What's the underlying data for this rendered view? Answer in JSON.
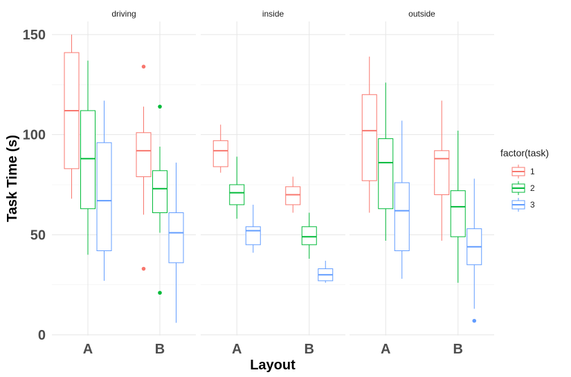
{
  "chart_data": {
    "type": "boxplot",
    "xlabel": "Layout",
    "ylabel": "Task Time (s)",
    "ylim": [
      0,
      150
    ],
    "yticks": [
      0,
      50,
      100,
      150
    ],
    "grid": true,
    "legend": {
      "title": "factor(task)",
      "position": "right",
      "entries": [
        "1",
        "2",
        "3"
      ]
    },
    "series_colors": {
      "1": "#F8766D",
      "2": "#00BA38",
      "3": "#619CFF"
    },
    "panels": [
      {
        "name": "driving",
        "categories": [
          "A",
          "B"
        ],
        "boxes": [
          {
            "category": "A",
            "task": "1",
            "whisker_low": 68,
            "q1": 83,
            "median": 112,
            "q3": 141,
            "whisker_high": 150,
            "outliers": []
          },
          {
            "category": "A",
            "task": "2",
            "whisker_low": 40,
            "q1": 63,
            "median": 88,
            "q3": 112,
            "whisker_high": 137,
            "outliers": []
          },
          {
            "category": "A",
            "task": "3",
            "whisker_low": 27,
            "q1": 42,
            "median": 67,
            "q3": 96,
            "whisker_high": 117,
            "outliers": []
          },
          {
            "category": "B",
            "task": "1",
            "whisker_low": 60,
            "q1": 79,
            "median": 92,
            "q3": 101,
            "whisker_high": 114,
            "outliers": [
              33,
              134
            ]
          },
          {
            "category": "B",
            "task": "2",
            "whisker_low": 51,
            "q1": 61,
            "median": 73,
            "q3": 82,
            "whisker_high": 94,
            "outliers": [
              21,
              114
            ]
          },
          {
            "category": "B",
            "task": "3",
            "whisker_low": 6,
            "q1": 36,
            "median": 51,
            "q3": 61,
            "whisker_high": 86,
            "outliers": []
          }
        ]
      },
      {
        "name": "inside",
        "categories": [
          "A",
          "B"
        ],
        "boxes": [
          {
            "category": "A",
            "task": "1",
            "whisker_low": 81,
            "q1": 84,
            "median": 92,
            "q3": 97,
            "whisker_high": 105,
            "outliers": []
          },
          {
            "category": "A",
            "task": "2",
            "whisker_low": 58,
            "q1": 65,
            "median": 71,
            "q3": 75,
            "whisker_high": 89,
            "outliers": []
          },
          {
            "category": "A",
            "task": "3",
            "whisker_low": 41,
            "q1": 45,
            "median": 52,
            "q3": 54,
            "whisker_high": 65,
            "outliers": []
          },
          {
            "category": "B",
            "task": "1",
            "whisker_low": 61,
            "q1": 65,
            "median": 70,
            "q3": 74,
            "whisker_high": 79,
            "outliers": []
          },
          {
            "category": "B",
            "task": "2",
            "whisker_low": 38,
            "q1": 45,
            "median": 49,
            "q3": 54,
            "whisker_high": 61,
            "outliers": []
          },
          {
            "category": "B",
            "task": "3",
            "whisker_low": 26,
            "q1": 27,
            "median": 30,
            "q3": 33,
            "whisker_high": 37,
            "outliers": []
          }
        ]
      },
      {
        "name": "outside",
        "categories": [
          "A",
          "B"
        ],
        "boxes": [
          {
            "category": "A",
            "task": "1",
            "whisker_low": 61,
            "q1": 77,
            "median": 102,
            "q3": 120,
            "whisker_high": 139,
            "outliers": []
          },
          {
            "category": "A",
            "task": "2",
            "whisker_low": 47,
            "q1": 63,
            "median": 86,
            "q3": 98,
            "whisker_high": 126,
            "outliers": []
          },
          {
            "category": "A",
            "task": "3",
            "whisker_low": 28,
            "q1": 42,
            "median": 62,
            "q3": 76,
            "whisker_high": 107,
            "outliers": []
          },
          {
            "category": "B",
            "task": "1",
            "whisker_low": 47,
            "q1": 70,
            "median": 88,
            "q3": 92,
            "whisker_high": 117,
            "outliers": []
          },
          {
            "category": "B",
            "task": "2",
            "whisker_low": 26,
            "q1": 49,
            "median": 64,
            "q3": 72,
            "whisker_high": 102,
            "outliers": []
          },
          {
            "category": "B",
            "task": "3",
            "whisker_low": 13,
            "q1": 35,
            "median": 44,
            "q3": 53,
            "whisker_high": 78,
            "outliers": [
              7
            ]
          }
        ]
      }
    ]
  }
}
